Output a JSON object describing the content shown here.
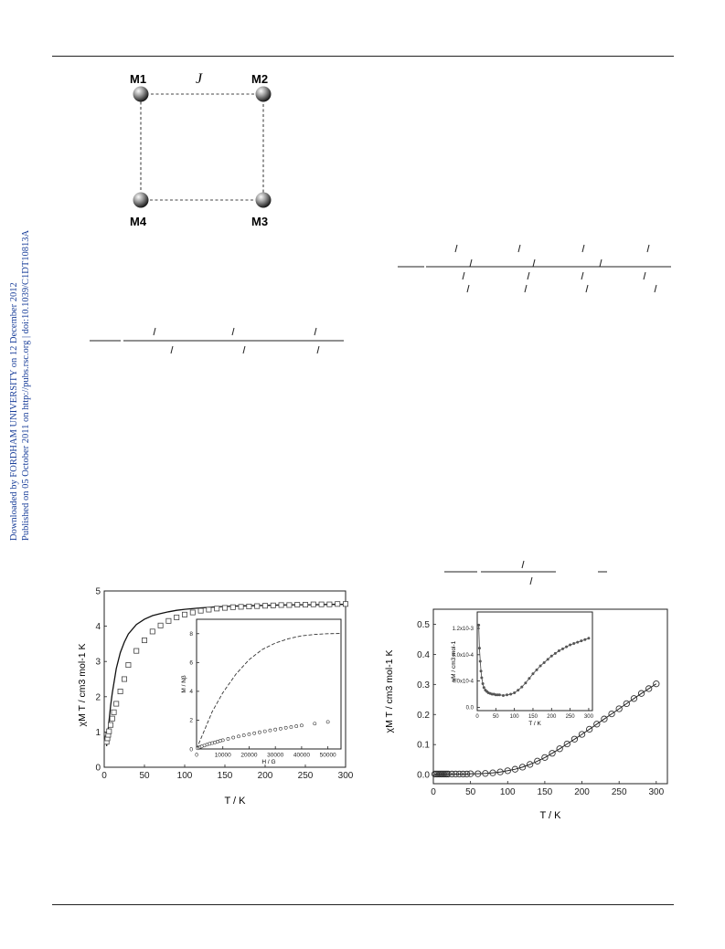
{
  "side_text": {
    "line1": "Downloaded by FORDHAM UNIVERSITY on 12 December 2012",
    "line2": "Published on 05 October 2011 on http://pubs.rsc.org | doi:10.1039/C1DT10813A"
  },
  "scheme": {
    "labels": [
      "M1",
      "M2",
      "M3",
      "M4"
    ],
    "coupling": "J"
  },
  "chart_data": [
    {
      "type": "scatter",
      "xlabel": "T / K",
      "ylabel": "χM T / cm3 mol-1 K",
      "xlim": [
        0,
        300
      ],
      "ylim": [
        0,
        5
      ],
      "xticks": [
        "0",
        "50",
        "100",
        "150",
        "200",
        "250",
        "300"
      ],
      "yticks": [
        "0",
        "1",
        "2",
        "3",
        "4",
        "5"
      ],
      "series": [
        {
          "marker": "open-square",
          "x": [
            3,
            4,
            5,
            6,
            8,
            10,
            12,
            15,
            20,
            25,
            30,
            40,
            50,
            60,
            70,
            80,
            90,
            100,
            110,
            120,
            130,
            140,
            150,
            160,
            170,
            180,
            190,
            200,
            210,
            220,
            230,
            240,
            250,
            260,
            270,
            280,
            290,
            300
          ],
          "y": [
            0.72,
            0.82,
            0.92,
            1.02,
            1.2,
            1.38,
            1.56,
            1.8,
            2.15,
            2.5,
            2.9,
            3.3,
            3.6,
            3.85,
            4.02,
            4.15,
            4.25,
            4.33,
            4.39,
            4.44,
            4.47,
            4.5,
            4.52,
            4.54,
            4.55,
            4.56,
            4.57,
            4.58,
            4.59,
            4.6,
            4.6,
            4.61,
            4.61,
            4.62,
            4.62,
            4.62,
            4.63,
            4.63
          ]
        },
        {
          "marker": "line",
          "x": [
            3,
            5,
            8,
            10,
            15,
            20,
            25,
            30,
            40,
            50,
            60,
            70,
            80,
            90,
            100,
            120,
            140,
            160,
            180,
            200,
            220,
            240,
            260,
            280,
            300
          ],
          "y": [
            0.6,
            1.1,
            1.75,
            2.1,
            2.8,
            3.25,
            3.55,
            3.78,
            4.05,
            4.2,
            4.3,
            4.36,
            4.41,
            4.45,
            4.48,
            4.52,
            4.55,
            4.57,
            4.58,
            4.59,
            4.6,
            4.61,
            4.61,
            4.62,
            4.62
          ]
        }
      ],
      "inset": {
        "xlabel": "H / G",
        "ylabel": "M / Nβ",
        "xlim": [
          0,
          55000
        ],
        "ylim": [
          0,
          9
        ],
        "xticks": [
          "0",
          "10000",
          "20000",
          "30000",
          "40000",
          "50000"
        ],
        "yticks": [
          "0",
          "2",
          "4",
          "6",
          "8"
        ],
        "series": [
          {
            "marker": "dashed",
            "x": [
              0,
              3000,
              6000,
              10000,
              15000,
              20000,
              25000,
              30000,
              35000,
              40000,
              45000,
              50000,
              55000
            ],
            "y": [
              0,
              1.3,
              2.6,
              3.9,
              5.2,
              6.2,
              6.9,
              7.35,
              7.65,
              7.85,
              7.95,
              8.0,
              8.02
            ]
          },
          {
            "marker": "open-circle",
            "x": [
              500,
              1000,
              1500,
              2000,
              3000,
              4000,
              5000,
              6000,
              7000,
              8000,
              9000,
              10000,
              12000,
              14000,
              16000,
              18000,
              20000,
              22000,
              24000,
              26000,
              28000,
              30000,
              32000,
              34000,
              36000,
              38000,
              40000,
              45000,
              50000
            ],
            "y": [
              0.05,
              0.1,
              0.14,
              0.18,
              0.24,
              0.3,
              0.36,
              0.41,
              0.46,
              0.51,
              0.56,
              0.61,
              0.7,
              0.79,
              0.87,
              0.95,
              1.02,
              1.09,
              1.16,
              1.23,
              1.29,
              1.35,
              1.41,
              1.47,
              1.52,
              1.58,
              1.63,
              1.76,
              1.88
            ]
          }
        ]
      }
    },
    {
      "type": "scatter",
      "xlabel": "T / K",
      "ylabel": "χM T / cm3 mol-1 K",
      "xlim": [
        0,
        315
      ],
      "ylim": [
        -0.03,
        0.55
      ],
      "xticks": [
        "0",
        "50",
        "100",
        "150",
        "200",
        "250",
        "300"
      ],
      "yticks": [
        "0.0",
        "0.1",
        "0.2",
        "0.3",
        "0.4",
        "0.5"
      ],
      "series": [
        {
          "marker": "circle-with-line",
          "x": [
            2,
            4,
            6,
            8,
            10,
            12,
            14,
            16,
            18,
            20,
            25,
            30,
            35,
            40,
            45,
            50,
            60,
            70,
            80,
            90,
            100,
            110,
            120,
            130,
            140,
            150,
            160,
            170,
            180,
            190,
            200,
            210,
            220,
            230,
            240,
            250,
            260,
            270,
            280,
            290,
            300
          ],
          "y": [
            0.002,
            0.002,
            0.002,
            0.002,
            0.002,
            0.002,
            0.002,
            0.002,
            0.002,
            0.002,
            0.002,
            0.002,
            0.002,
            0.002,
            0.002,
            0.003,
            0.003,
            0.004,
            0.006,
            0.009,
            0.013,
            0.018,
            0.025,
            0.034,
            0.045,
            0.057,
            0.071,
            0.086,
            0.102,
            0.118,
            0.134,
            0.151,
            0.168,
            0.185,
            0.202,
            0.219,
            0.236,
            0.253,
            0.27,
            0.286,
            0.302
          ]
        }
      ],
      "inset": {
        "xlabel": "T / K",
        "ylabel": "χM / cm3 mol-1",
        "xlim": [
          0,
          310
        ],
        "ylim": [
          -5e-05,
          0.00145
        ],
        "xticks": [
          "0",
          "50",
          "100",
          "150",
          "200",
          "250",
          "300"
        ],
        "yticks": [
          "0.0",
          "4.0x10-4",
          "8.0x10-4",
          "1.2x10-3"
        ],
        "series": [
          {
            "marker": "filled-circle",
            "x": [
              4,
              6,
              8,
              10,
              12,
              15,
              18,
              22,
              26,
              30,
              35,
              40,
              45,
              50,
              55,
              60,
              70,
              80,
              90,
              100,
              110,
              120,
              130,
              140,
              150,
              160,
              170,
              180,
              190,
              200,
              210,
              220,
              230,
              240,
              250,
              260,
              270,
              280,
              290,
              300
            ],
            "y": [
              0.00125,
              0.0009,
              0.0007,
              0.00055,
              0.00045,
              0.00036,
              0.0003,
              0.00026,
              0.00024,
              0.00022,
              0.00021,
              0.0002,
              0.0002,
              0.00019,
              0.00019,
              0.00019,
              0.00018,
              0.00019,
              0.0002,
              0.00022,
              0.00026,
              0.00031,
              0.00037,
              0.00044,
              0.00051,
              0.00057,
              0.00063,
              0.00068,
              0.00073,
              0.00078,
              0.00082,
              0.00086,
              0.00089,
              0.00092,
              0.00095,
              0.00097,
              0.00099,
              0.00101,
              0.00103,
              0.00105
            ]
          }
        ]
      }
    }
  ]
}
